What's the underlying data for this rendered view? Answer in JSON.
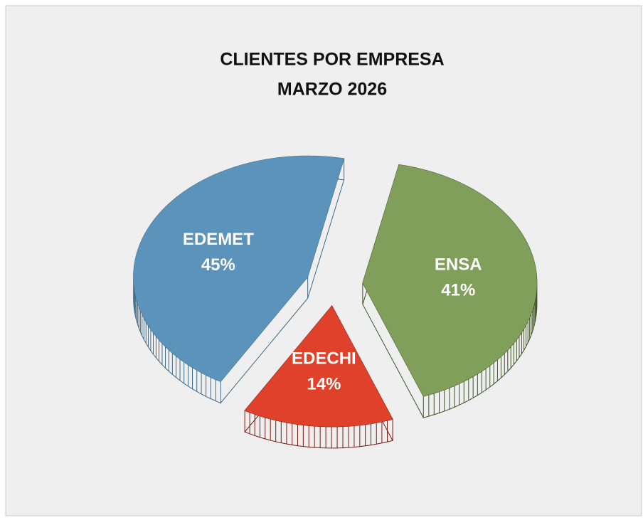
{
  "chart_data": {
    "type": "pie",
    "title": "CLIENTES  POR  EMPRESA",
    "subtitle": "MARZO  2026",
    "categories": [
      "ENSA",
      "EDECHI",
      "EDEMET"
    ],
    "values": [
      41,
      14,
      45
    ],
    "value_labels": [
      "41%",
      "14%",
      "45%"
    ],
    "colors": [
      "#7f9f5b",
      "#e0412a",
      "#5b93bb"
    ],
    "side_colors": [
      "#3f5229",
      "#7a1a10",
      "#3f6a88"
    ]
  }
}
